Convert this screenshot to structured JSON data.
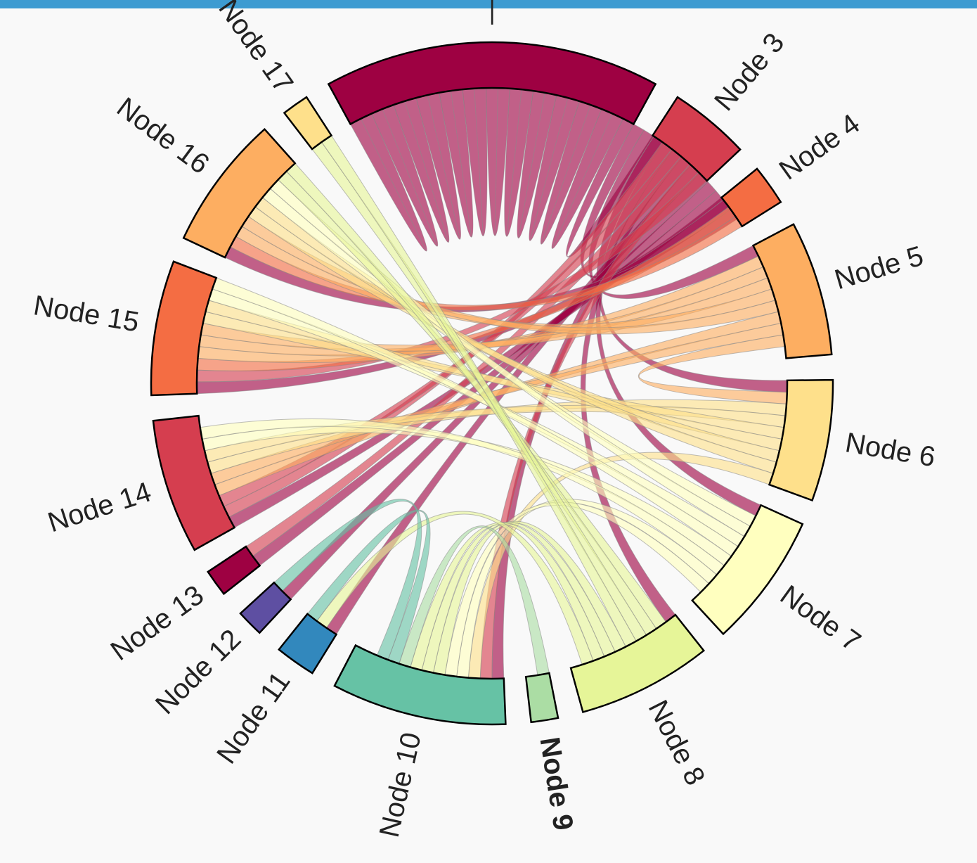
{
  "chart_data": {
    "type": "chord",
    "title": "",
    "highlighted_node": "Node 9",
    "nodes": [
      {
        "id": 2,
        "label": "",
        "color": "#9e0142",
        "value": 25,
        "top_edge_glyph": "—"
      },
      {
        "id": 3,
        "label": "Node 3",
        "color": "#d53e4f",
        "value": 6
      },
      {
        "id": 4,
        "label": "Node 4",
        "color": "#f46d43",
        "value": 3
      },
      {
        "id": 5,
        "label": "Node 5",
        "color": "#fdae61",
        "value": 10
      },
      {
        "id": 6,
        "label": "Node 6",
        "color": "#fee08b",
        "value": 9
      },
      {
        "id": 7,
        "label": "Node 7",
        "color": "#ffffbf",
        "value": 10
      },
      {
        "id": 8,
        "label": "Node 8",
        "color": "#e6f598",
        "value": 10
      },
      {
        "id": 9,
        "label": "Node 9",
        "color": "#abdda4",
        "value": 2
      },
      {
        "id": 10,
        "label": "Node 10",
        "color": "#66c2a5",
        "value": 13
      },
      {
        "id": 11,
        "label": "Node 11",
        "color": "#3288bd",
        "value": 3
      },
      {
        "id": 12,
        "label": "Node 12",
        "color": "#5e4fa2",
        "value": 2
      },
      {
        "id": 13,
        "label": "Node 13",
        "color": "#9e0142",
        "value": 2
      },
      {
        "id": 14,
        "label": "Node 14",
        "color": "#d53e4f",
        "value": 10
      },
      {
        "id": 15,
        "label": "Node 15",
        "color": "#f46d43",
        "value": 10
      },
      {
        "id": 16,
        "label": "Node 16",
        "color": "#fdae61",
        "value": 10
      },
      {
        "id": 17,
        "label": "Node 17",
        "color": "#fee08b",
        "value": 2
      }
    ],
    "links": [
      {
        "source": 2,
        "target": 2,
        "value": 12
      },
      {
        "source": 2,
        "target": 3,
        "value": 1
      },
      {
        "source": 2,
        "target": 4,
        "value": 1
      },
      {
        "source": 2,
        "target": 5,
        "value": 1
      },
      {
        "source": 2,
        "target": 6,
        "value": 1
      },
      {
        "source": 2,
        "target": 7,
        "value": 1
      },
      {
        "source": 2,
        "target": 8,
        "value": 1
      },
      {
        "source": 2,
        "target": 10,
        "value": 1
      },
      {
        "source": 2,
        "target": 11,
        "value": 1
      },
      {
        "source": 2,
        "target": 12,
        "value": 1
      },
      {
        "source": 2,
        "target": 13,
        "value": 1
      },
      {
        "source": 2,
        "target": 14,
        "value": 1
      },
      {
        "source": 2,
        "target": 15,
        "value": 1
      },
      {
        "source": 2,
        "target": 16,
        "value": 1
      },
      {
        "source": 3,
        "target": 14,
        "value": 2
      },
      {
        "source": 3,
        "target": 13,
        "value": 1
      },
      {
        "source": 3,
        "target": 10,
        "value": 1
      },
      {
        "source": 3,
        "target": 15,
        "value": 1
      },
      {
        "source": 4,
        "target": 15,
        "value": 1
      },
      {
        "source": 4,
        "target": 16,
        "value": 1
      },
      {
        "source": 5,
        "target": 15,
        "value": 3
      },
      {
        "source": 5,
        "target": 16,
        "value": 2
      },
      {
        "source": 5,
        "target": 14,
        "value": 2
      },
      {
        "source": 5,
        "target": 6,
        "value": 1
      },
      {
        "source": 6,
        "target": 14,
        "value": 2
      },
      {
        "source": 6,
        "target": 15,
        "value": 2
      },
      {
        "source": 6,
        "target": 16,
        "value": 2
      },
      {
        "source": 6,
        "target": 10,
        "value": 1
      },
      {
        "source": 7,
        "target": 16,
        "value": 2
      },
      {
        "source": 7,
        "target": 15,
        "value": 2
      },
      {
        "source": 7,
        "target": 14,
        "value": 2
      },
      {
        "source": 7,
        "target": 10,
        "value": 2
      },
      {
        "source": 8,
        "target": 16,
        "value": 2
      },
      {
        "source": 8,
        "target": 17,
        "value": 2
      },
      {
        "source": 8,
        "target": 10,
        "value": 3
      },
      {
        "source": 8,
        "target": 11,
        "value": 1
      },
      {
        "source": 9,
        "target": 10,
        "value": 1
      },
      {
        "source": 10,
        "target": 11,
        "value": 1
      },
      {
        "source": 10,
        "target": 12,
        "value": 1
      }
    ]
  }
}
